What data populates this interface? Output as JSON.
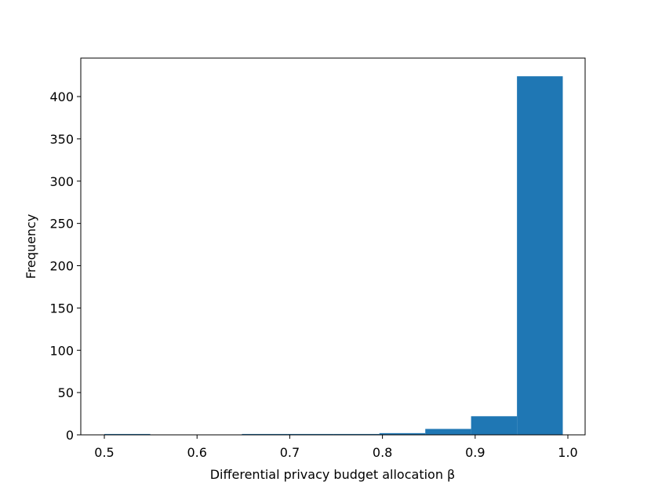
{
  "chart_data": {
    "type": "histogram",
    "xlabel": "Differential privacy budget allocation β",
    "ylabel": "Frequency",
    "bins": [
      0.5,
      0.5495,
      0.5989,
      0.6484,
      0.6978,
      0.7473,
      0.7967,
      0.8462,
      0.8956,
      0.9451,
      0.9945
    ],
    "values": [
      1,
      0,
      0,
      1,
      1,
      1,
      2,
      7,
      22,
      424
    ],
    "color": "#1f77b4",
    "xlim": [
      0.4746,
      1.0186
    ],
    "xticks": [
      0.5,
      0.6,
      0.7,
      0.8,
      0.9,
      {
        "value": 1.0,
        "label": "1.0"
      }
    ],
    "ylim": [
      0,
      445.5
    ],
    "yticks": [
      0,
      50,
      100,
      150,
      200,
      250,
      300,
      350,
      400
    ]
  }
}
